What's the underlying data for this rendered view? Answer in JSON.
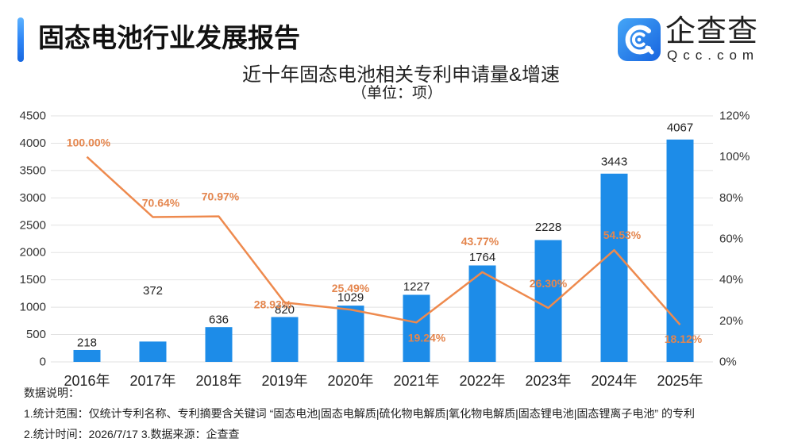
{
  "header": {
    "title": "固态电池行业发展报告"
  },
  "logo": {
    "icon": "qcc-logo-icon",
    "name": "企查查",
    "domain": "Qcc.com"
  },
  "colors": {
    "accent": "#2F86F6",
    "bar": "#1D8CE8",
    "line": "#EE8A4E",
    "line_label": "#E4864E"
  },
  "chart_data": {
    "type": "bar",
    "title": "近十年固态电池相关专利申请量&增速",
    "subtitle": "（单位：项）",
    "categories": [
      "2016年",
      "2017年",
      "2018年",
      "2019年",
      "2020年",
      "2021年",
      "2022年",
      "2023年",
      "2024年",
      "2025年"
    ],
    "series": [
      {
        "type": "bar",
        "axis": "left",
        "values": [
          218,
          372,
          636,
          820,
          1029,
          1227,
          1764,
          2228,
          3443,
          4067
        ],
        "labels": [
          "218",
          "372",
          "636",
          "820",
          "1029",
          "1227",
          "1764",
          "2228",
          "3443",
          "4067"
        ]
      },
      {
        "type": "line",
        "axis": "right",
        "values": [
          100.0,
          70.64,
          70.97,
          28.93,
          25.49,
          19.24,
          43.77,
          26.3,
          54.53,
          18.12
        ],
        "labels": [
          "100.00%",
          "70.64%",
          "70.97%",
          "28.93%",
          "25.49%",
          "19.24%",
          "43.77%",
          "26.30%",
          "54.53%",
          "18.12%"
        ]
      }
    ],
    "y_left": {
      "min": 0,
      "max": 4500,
      "ticks": [
        "0",
        "500",
        "1000",
        "1500",
        "2000",
        "2500",
        "3000",
        "3500",
        "4000",
        "4500"
      ]
    },
    "y_right": {
      "min": 0,
      "max": 120,
      "ticks": [
        "0%",
        "20%",
        "40%",
        "60%",
        "80%",
        "100%",
        "120%"
      ]
    },
    "grid": true
  },
  "notes": {
    "heading": "数据说明：",
    "lines": [
      "1.统计范围：仅统计专利名称、专利摘要含关键词 “固态电池|固态电解质|硫化物电解质|氧化物电解质|固态锂电池|固态锂离子电池” 的专利",
      "2.统计时间：2026/7/17 3.数据来源：企查查"
    ]
  }
}
